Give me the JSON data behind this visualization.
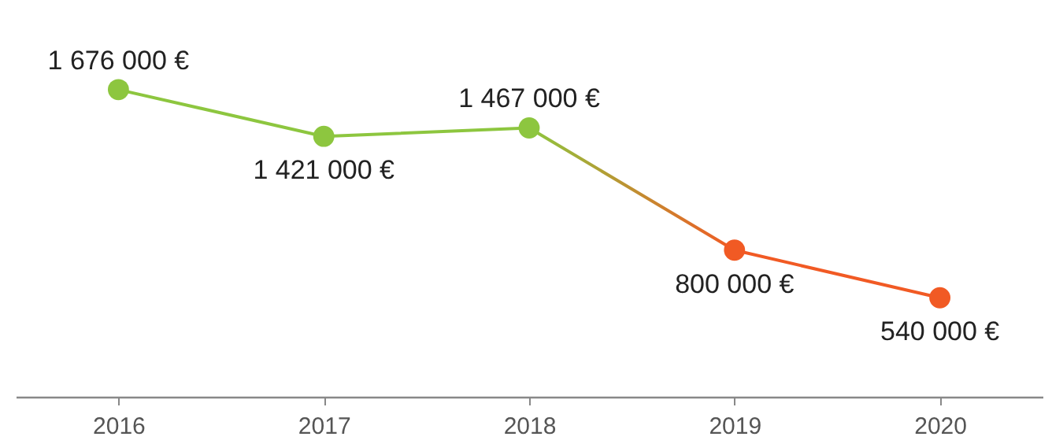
{
  "chart_data": {
    "type": "line",
    "categories": [
      "2016",
      "2017",
      "2018",
      "2019",
      "2020"
    ],
    "series": [
      {
        "colors": [
          "#8dc63f",
          "#8dc63f",
          "#8dc63f",
          "#f15a24",
          "#f15a24"
        ],
        "values": [
          1676000,
          1421000,
          1467000,
          800000,
          540000
        ],
        "value_labels": [
          "1 676 000 €",
          "1 421 000 €",
          "1 467 000 €",
          "800 000 €",
          "540 000 €"
        ]
      }
    ],
    "marker": "circle",
    "grid": false
  }
}
